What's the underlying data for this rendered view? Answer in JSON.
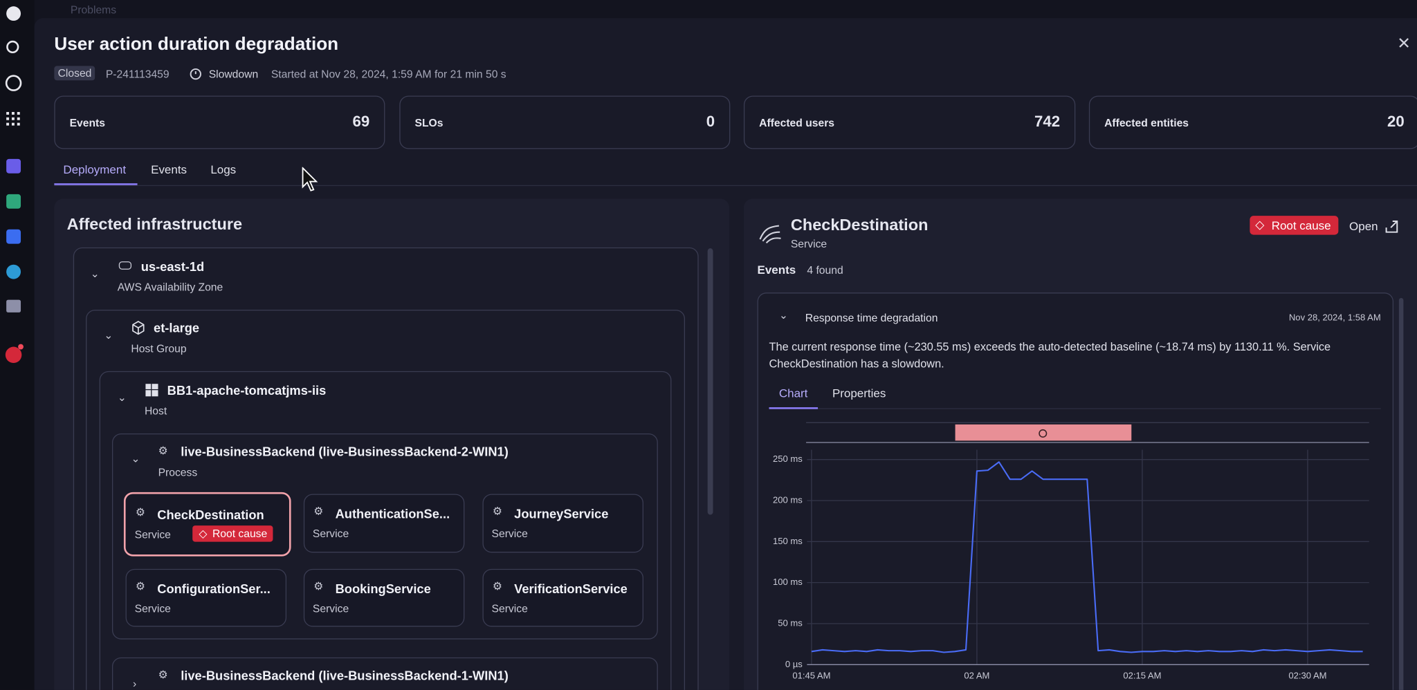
{
  "nav": {
    "breadcrumb": "Problems"
  },
  "header": {
    "title": "User action duration degradation",
    "status": "Closed",
    "id": "P-241113459",
    "kind": "Slowdown",
    "started": "Started at Nov 28, 2024, 1:59 AM for 21 min 50 s"
  },
  "stats": [
    {
      "label": "Events",
      "value": 69
    },
    {
      "label": "SLOs",
      "value": 0
    },
    {
      "label": "Affected users",
      "value": 742
    },
    {
      "label": "Affected entities",
      "value": 20
    }
  ],
  "tabs": [
    "Deployment",
    "Events",
    "Logs"
  ],
  "infrastructure": {
    "title": "Affected infrastructure",
    "zone": {
      "name": "us-east-1d",
      "type": "AWS Availability Zone"
    },
    "host_group": {
      "name": "et-large",
      "type": "Host Group"
    },
    "host": {
      "name": "BB1-apache-tomcatjms-iis",
      "type": "Host"
    },
    "process": {
      "name": "live-BusinessBackend (live-BusinessBackend-2-WIN1)",
      "type": "Process"
    },
    "services": [
      {
        "name": "CheckDestination",
        "type": "Service",
        "badge": "Root cause"
      },
      {
        "name": "AuthenticationSe...",
        "type": "Service"
      },
      {
        "name": "JourneyService",
        "type": "Service"
      },
      {
        "name": "ConfigurationSer...",
        "type": "Service"
      },
      {
        "name": "BookingService",
        "type": "Service"
      },
      {
        "name": "VerificationService",
        "type": "Service"
      }
    ],
    "process2": {
      "name": "live-BusinessBackend (live-BusinessBackend-1-WIN1)"
    }
  },
  "detail": {
    "name": "CheckDestination",
    "type": "Service",
    "badge": "Root cause",
    "open": "Open",
    "events_label": "Events",
    "events_count": "4 found",
    "event": {
      "title": "Response time degradation",
      "time": "Nov 28, 2024, 1:58 AM",
      "description": "The current response time (~230.55 ms) exceeds the auto-detected baseline (~18.74 ms) by 1130.11 %. Service CheckDestination has a slowdown.",
      "tabs": [
        "Chart",
        "Properties"
      ]
    }
  },
  "chart_data": {
    "type": "line",
    "categories": [
      "01:45 AM",
      null,
      null,
      null,
      null,
      null,
      null,
      null,
      null,
      null,
      null,
      null,
      null,
      null,
      null,
      "02 AM",
      null,
      null,
      null,
      null,
      null,
      null,
      null,
      null,
      null,
      null,
      null,
      null,
      null,
      null,
      "02:15 AM",
      null,
      null,
      null,
      null,
      null,
      null,
      null,
      null,
      null,
      null,
      null,
      null,
      null,
      null,
      "02:30 AM",
      null,
      null,
      null,
      null,
      null
    ],
    "values": [
      16,
      18,
      17,
      16,
      17,
      16,
      18,
      17,
      17,
      16,
      17,
      17,
      15,
      16,
      18,
      236,
      237,
      247,
      226,
      226,
      236,
      226,
      226,
      226,
      226,
      226,
      17,
      18,
      16,
      15,
      16,
      16,
      17,
      16,
      17,
      16,
      17,
      16,
      16,
      17,
      16,
      18,
      17,
      18,
      17,
      16,
      17,
      18,
      17,
      16,
      16
    ],
    "color": "#4a6cf7",
    "ylim": [
      0,
      262
    ],
    "yticks": [
      {
        "value": 0,
        "label": "0 µs"
      },
      {
        "value": 50,
        "label": "50 ms"
      },
      {
        "value": 100,
        "label": "100 ms"
      },
      {
        "value": 150,
        "label": "150 ms"
      },
      {
        "value": 200,
        "label": "200 ms"
      },
      {
        "value": 250,
        "label": "250 ms"
      }
    ],
    "grid": true
  }
}
